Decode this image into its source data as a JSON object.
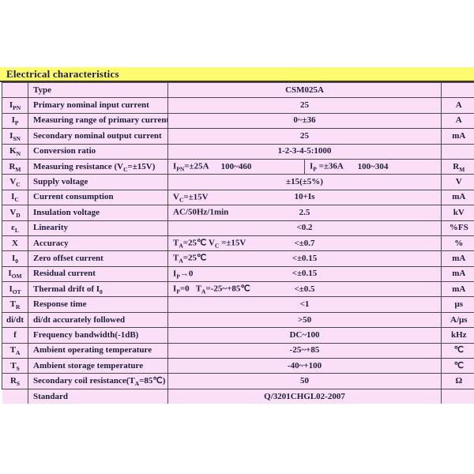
{
  "header": {
    "title": "Electrical characteristics"
  },
  "colors": {
    "yellow": "#fdfb6e",
    "pink": "#fbdff8",
    "border": "#4c4c4c",
    "text": "#20203e"
  },
  "table": {
    "rows": [
      {
        "sym": "",
        "param": "Type",
        "cells": [
          {
            "cond": "",
            "val": "CSM025A"
          }
        ],
        "unit": ""
      },
      {
        "sym": "I_{PN}",
        "param": "Primary nominal input current",
        "cells": [
          {
            "cond": "",
            "val": "25"
          }
        ],
        "unit": "A"
      },
      {
        "sym": "I_{P}",
        "param": "Measuring range of primary current",
        "cells": [
          {
            "cond": "",
            "val": "0~±36"
          }
        ],
        "unit": "A"
      },
      {
        "sym": "I_{SN}",
        "param": "Secondary nominal output current",
        "cells": [
          {
            "cond": "",
            "val": "25"
          }
        ],
        "unit": "mA"
      },
      {
        "sym": "K_{N}",
        "param": "Conversion ratio",
        "cells": [
          {
            "cond": "",
            "val": "1-2-3-4-5:1000"
          }
        ],
        "unit": ""
      },
      {
        "sym": "R_{M}",
        "param": "Measuring resistance  (V_{C}=±15V)",
        "cells": [
          {
            "cond": "I_{PN}=±25A",
            "val": "100~460"
          },
          {
            "cond": "I_{P} =±36A",
            "val": "100~304"
          }
        ],
        "unit": "R_{M}"
      },
      {
        "sym": "V_{C}",
        "param": "Supply voltage",
        "cells": [
          {
            "cond": "",
            "val": "±15(±5%)"
          }
        ],
        "unit": "V"
      },
      {
        "sym": "I_{C}",
        "param": "Current consumption",
        "cells": [
          {
            "cond": "V_{C}=±15V",
            "val": "10+Is"
          }
        ],
        "unit": "mA"
      },
      {
        "sym": "V_{D}",
        "param": "Insulation voltage",
        "cells": [
          {
            "cond": "AC/50Hz/1min",
            "val": "2.5"
          }
        ],
        "unit": "kV"
      },
      {
        "sym": "ε_{L}",
        "param": "Linearity",
        "cells": [
          {
            "cond": "",
            "val": "<0.2"
          }
        ],
        "unit": "%FS"
      },
      {
        "sym": "X",
        "param": "Accuracy",
        "cells": [
          {
            "cond": "T_{A}=25℃ V_{C} =±15V",
            "val": "<±0.7"
          }
        ],
        "unit": "%"
      },
      {
        "sym": "I_{0}",
        "param": "Zero offset current",
        "cells": [
          {
            "cond": "T_{A}=25℃",
            "val": "<±0.15"
          }
        ],
        "unit": "mA"
      },
      {
        "sym": "I_{OM}",
        "param": "Residual current",
        "cells": [
          {
            "cond": "I_{P}→0",
            "val": "<±0.15"
          }
        ],
        "unit": "mA"
      },
      {
        "sym": "I_{OT}",
        "param": "Thermal drift of I_{0}",
        "cells": [
          {
            "cond": "I_{P}=0   T_{A}=-25~+85℃",
            "val": "<±0.5"
          }
        ],
        "unit": "mA"
      },
      {
        "sym": "T_{R}",
        "param": "Response time",
        "cells": [
          {
            "cond": "",
            "val": "<1"
          }
        ],
        "unit": "μs"
      },
      {
        "sym": "di/dt",
        "param": "di/dt accurately followed",
        "cells": [
          {
            "cond": "",
            "val": ">50"
          }
        ],
        "unit": "A/μs"
      },
      {
        "sym": "f",
        "param": "Frequency bandwidth(-1dB)",
        "cells": [
          {
            "cond": "",
            "val": "DC~100"
          }
        ],
        "unit": "kHz"
      },
      {
        "sym": "T_{A}",
        "param": "Ambient operating temperature",
        "cells": [
          {
            "cond": "",
            "val": "-25~+85"
          }
        ],
        "unit": "℃"
      },
      {
        "sym": "T_{S}",
        "param": "Ambient storage temperature",
        "cells": [
          {
            "cond": "",
            "val": "-40~+100"
          }
        ],
        "unit": "℃"
      },
      {
        "sym": "R_{S}",
        "param": "Secondary coil resistance(T_{A}=85℃)",
        "cells": [
          {
            "cond": "",
            "val": "50"
          }
        ],
        "unit": "Ω"
      },
      {
        "sym": "",
        "param": "Standard",
        "cells": [
          {
            "cond": "",
            "val": "Q/3201CHGL02-2007"
          }
        ],
        "unit": "",
        "last": true
      }
    ]
  }
}
